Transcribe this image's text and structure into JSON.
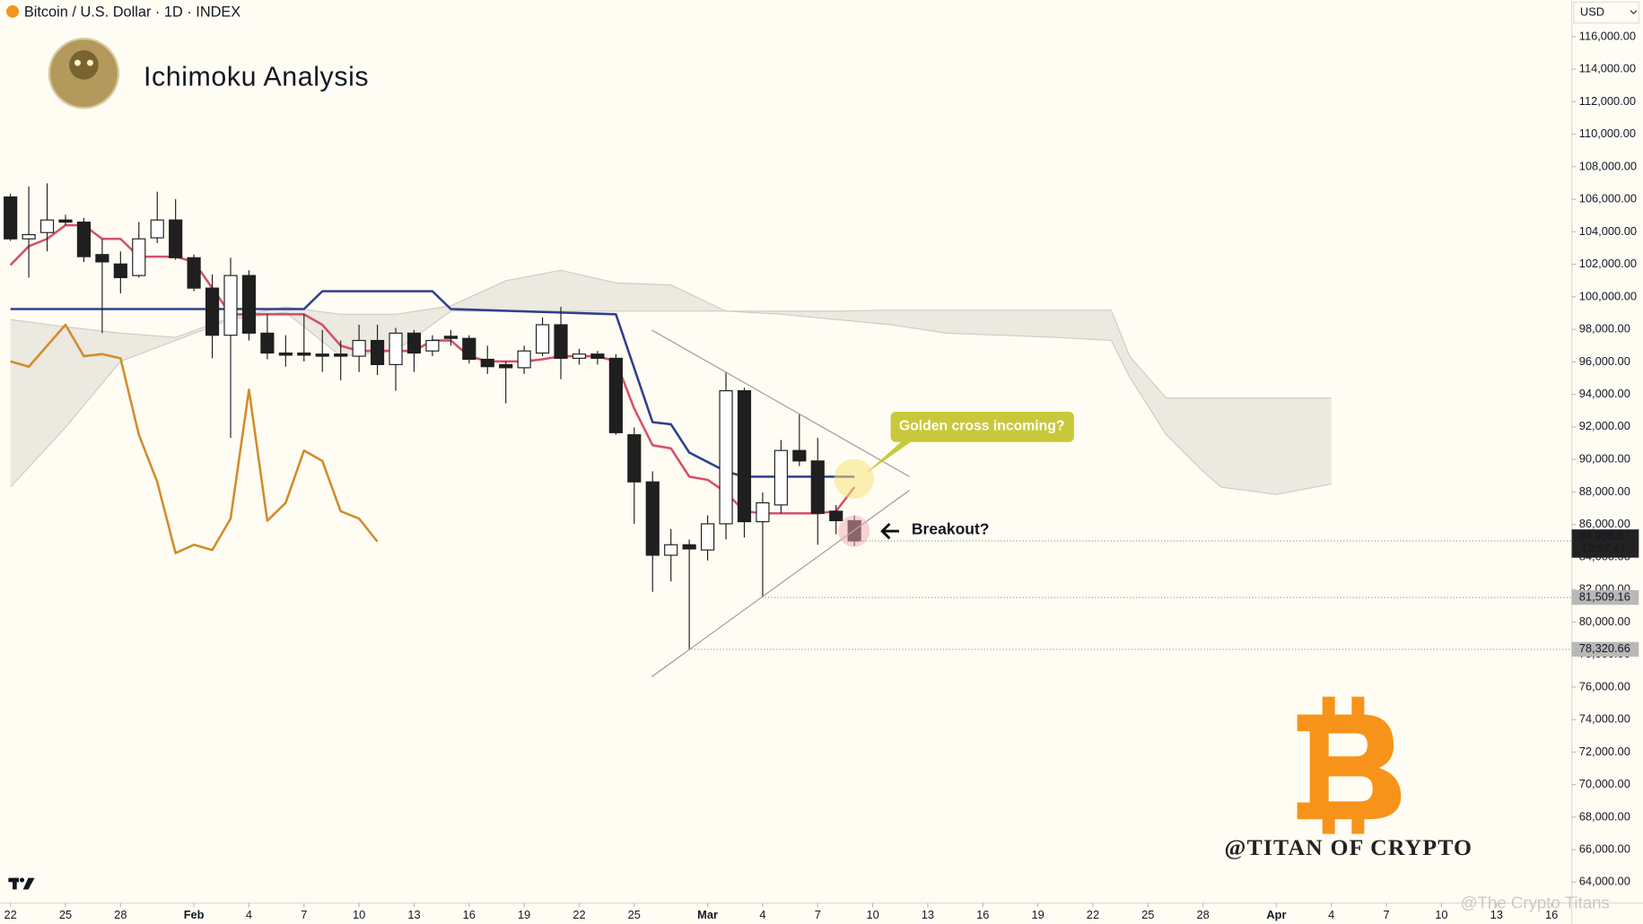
{
  "header": {
    "symbol": "Bitcoin / U.S. Dollar · 1D · INDEX",
    "title": "Ichimoku Analysis",
    "currency": "USD"
  },
  "chart_data": {
    "type": "candlestick",
    "x": [
      0,
      1,
      2,
      3,
      4,
      5,
      6,
      7,
      8,
      9,
      10,
      11,
      12,
      13,
      14,
      15,
      16,
      17,
      18,
      19,
      20,
      21,
      22,
      23,
      24,
      25,
      26,
      27,
      28,
      29,
      30,
      31,
      32,
      33,
      34,
      35,
      36,
      37,
      38,
      39,
      40,
      41,
      42,
      43,
      44,
      45,
      46
    ],
    "open": [
      106142,
      103565,
      103952,
      104725,
      104596,
      102599,
      102019,
      101310,
      103629,
      104725,
      102405,
      100537,
      97637,
      101310,
      97766,
      96542,
      96542,
      96478,
      96478,
      96349,
      97315,
      95833,
      97766,
      96671,
      97573,
      97444,
      96156,
      95833,
      95640,
      96542,
      98282,
      96220,
      96478,
      96220,
      91517,
      88617,
      84107,
      84751,
      84429,
      86040,
      94223,
      86169,
      87200,
      90550,
      89906,
      86813,
      86233
    ],
    "high": [
      106335,
      106787,
      106980,
      105047,
      104854,
      103565,
      102792,
      104596,
      106464,
      106013,
      102599,
      101374,
      102405,
      101632,
      98926,
      97637,
      98926,
      97960,
      97315,
      98282,
      98282,
      98088,
      97960,
      97637,
      97960,
      97637,
      96993,
      96027,
      96993,
      98733,
      99377,
      96800,
      96671,
      96478,
      91968,
      89262,
      85718,
      85074,
      86555,
      95382,
      94416,
      87973,
      91194,
      92805,
      91323,
      87200,
      86555
    ],
    "low": [
      103436,
      101181,
      102792,
      104403,
      102148,
      97766,
      100215,
      101181,
      103307,
      102276,
      100344,
      96220,
      91323,
      97315,
      96156,
      95705,
      96027,
      95382,
      94867,
      95382,
      95189,
      94223,
      95382,
      96349,
      96993,
      95898,
      95254,
      93449,
      95254,
      96349,
      94931,
      95833,
      95833,
      91517,
      86040,
      81852,
      82496,
      78320.66,
      83785,
      85074,
      85202,
      81509.16,
      86684,
      89584,
      84751,
      85396,
      84687
    ],
    "close": [
      103565,
      103823,
      104725,
      104596,
      102470,
      102148,
      101181,
      103565,
      104725,
      102405,
      100537,
      97637,
      101310,
      97766,
      96542,
      96413,
      96413,
      96349,
      96349,
      97315,
      95833,
      97766,
      96542,
      97315,
      97444,
      96156,
      95705,
      95640,
      96671,
      98282,
      96220,
      96478,
      96220,
      91645,
      88617,
      84107,
      84751,
      84494,
      86040,
      94223,
      86169,
      87329,
      90550,
      89906,
      86684,
      86233,
      84986.67
    ],
    "candle_colors": {
      "up": "#ffffff",
      "down": "#1f1f1f",
      "wick": "#1f1f1f"
    },
    "lines": [
      {
        "color": "#d4516c",
        "x": [
          0,
          1,
          2,
          3,
          4,
          5,
          6,
          7,
          8,
          9,
          10,
          11,
          12,
          13,
          14,
          15,
          16,
          17,
          18,
          19,
          20,
          21,
          22,
          23,
          24,
          25,
          26,
          27,
          28,
          29,
          30,
          31,
          32,
          33,
          34,
          35,
          36,
          37,
          38,
          39,
          40,
          41,
          42,
          43,
          44,
          45,
          46
        ],
        "values": [
          101954,
          103114,
          103565,
          104403,
          104403,
          103565,
          103565,
          102470,
          102470,
          102470,
          102148,
          100537,
          98926,
          98926,
          98926,
          98926,
          98926,
          98282,
          96993,
          96671,
          96671,
          96671,
          96671,
          97315,
          97315,
          96349,
          96027,
          96027,
          96027,
          96156,
          96349,
          96349,
          96349,
          96027,
          93127,
          90872,
          90679,
          88939,
          88746,
          87973,
          86813,
          86684,
          86684,
          86684,
          86684,
          86813,
          88295
        ]
      },
      {
        "color": "#2e3f8f",
        "x": [
          0,
          16,
          17,
          23,
          24,
          33,
          35,
          36,
          37,
          39,
          40,
          46
        ],
        "values": [
          99248,
          99248,
          100344,
          100344,
          99248,
          98926,
          92290,
          92161,
          90421,
          89262,
          88939,
          88939
        ]
      },
      {
        "color": "#d38b2c",
        "x": [
          0,
          1,
          2,
          3,
          4,
          5,
          6,
          7,
          8,
          9,
          10,
          11,
          12,
          13,
          14,
          15,
          16,
          17,
          18,
          19,
          20
        ],
        "values": [
          96027,
          95705,
          96993,
          98282,
          96349,
          96478,
          96220,
          91517,
          88617,
          84236,
          84751,
          84429,
          86362,
          94287,
          86233,
          87329,
          90550,
          89906,
          86813,
          86362,
          84945
        ]
      }
    ],
    "cloud": {
      "color": "#e4e1da",
      "edge": "#cfccc4",
      "x": [
        0,
        3,
        6,
        9,
        12,
        15,
        18,
        21,
        24,
        27,
        30,
        33,
        36,
        39,
        42,
        45,
        48,
        51,
        54,
        57,
        60,
        61,
        63,
        65,
        66,
        69,
        72
      ],
      "span_a": [
        88295,
        91968,
        96027,
        97315,
        98604,
        99055,
        96349,
        96671,
        99119,
        99119,
        99119,
        99119,
        99119,
        99119,
        98926,
        98604,
        98282,
        97766,
        97637,
        97509,
        97315,
        95060,
        91517,
        89262,
        88295,
        87844,
        88488
      ],
      "span_b": [
        98604,
        98153,
        97766,
        97509,
        98733,
        99377,
        98926,
        98926,
        99441,
        100988,
        101632,
        100859,
        100730,
        99119,
        99119,
        99119,
        99184,
        99184,
        99184,
        99184,
        99184,
        96349,
        93772,
        93772,
        93772,
        93772,
        93772
      ]
    },
    "xlim": [
      -0.57,
      85.1
    ],
    "ylim": [
      62716,
      118255
    ],
    "yticks": [
      {
        "value": 64000,
        "label": "64,000.00"
      },
      {
        "value": 66000,
        "label": "66,000.00"
      },
      {
        "value": 68000,
        "label": "68,000.00"
      },
      {
        "value": 70000,
        "label": "70,000.00"
      },
      {
        "value": 72000,
        "label": "72,000.00"
      },
      {
        "value": 74000,
        "label": "74,000.00"
      },
      {
        "value": 76000,
        "label": "76,000.00"
      },
      {
        "value": 78000,
        "label": "78,000.00"
      },
      {
        "value": 80000,
        "label": "80,000.00"
      },
      {
        "value": 82000,
        "label": "82,000.00"
      },
      {
        "value": 84000,
        "label": "84,000.00"
      },
      {
        "value": 86000,
        "label": "86,000.00"
      },
      {
        "value": 88000,
        "label": "88,000.00"
      },
      {
        "value": 90000,
        "label": "90,000.00"
      },
      {
        "value": 92000,
        "label": "92,000.00"
      },
      {
        "value": 94000,
        "label": "94,000.00"
      },
      {
        "value": 96000,
        "label": "96,000.00"
      },
      {
        "value": 98000,
        "label": "98,000.00"
      },
      {
        "value": 100000,
        "label": "100,000.00"
      },
      {
        "value": 102000,
        "label": "102,000.00"
      },
      {
        "value": 104000,
        "label": "104,000.00"
      },
      {
        "value": 106000,
        "label": "106,000.00"
      },
      {
        "value": 108000,
        "label": "108,000.00"
      },
      {
        "value": 110000,
        "label": "110,000.00"
      },
      {
        "value": 112000,
        "label": "112,000.00"
      },
      {
        "value": 114000,
        "label": "114,000.00"
      },
      {
        "value": 116000,
        "label": "116,000.00"
      }
    ],
    "xticks": [
      {
        "value": 0,
        "label": "22"
      },
      {
        "value": 3,
        "label": "25"
      },
      {
        "value": 6,
        "label": "28"
      },
      {
        "value": 10,
        "label": "Feb"
      },
      {
        "value": 13,
        "label": "4"
      },
      {
        "value": 16,
        "label": "7"
      },
      {
        "value": 19,
        "label": "10"
      },
      {
        "value": 22,
        "label": "13"
      },
      {
        "value": 25,
        "label": "16"
      },
      {
        "value": 28,
        "label": "19"
      },
      {
        "value": 31,
        "label": "22"
      },
      {
        "value": 34,
        "label": "25"
      },
      {
        "value": 38,
        "label": "Mar"
      },
      {
        "value": 41,
        "label": "4"
      },
      {
        "value": 44,
        "label": "7"
      },
      {
        "value": 47,
        "label": "10"
      },
      {
        "value": 50,
        "label": "13"
      },
      {
        "value": 53,
        "label": "16"
      },
      {
        "value": 56,
        "label": "19"
      },
      {
        "value": 59,
        "label": "22"
      },
      {
        "value": 62,
        "label": "25"
      },
      {
        "value": 65,
        "label": "28"
      },
      {
        "value": 69,
        "label": "Apr"
      },
      {
        "value": 72,
        "label": "4"
      },
      {
        "value": 75,
        "label": "7"
      },
      {
        "value": 78,
        "label": "10"
      },
      {
        "value": 81,
        "label": "13"
      },
      {
        "value": 84,
        "label": "16"
      }
    ],
    "price_labels": [
      {
        "value": 84986.67,
        "label": "84,986.67",
        "countdown": "12:57:41"
      },
      {
        "value": 81509.16,
        "label": "81,509.16"
      },
      {
        "value": 78320.66,
        "label": "78,320.66"
      }
    ],
    "annotations": [
      "Golden cross incoming?",
      "Breakout?"
    ]
  },
  "watermark": "@TITAN OF CRYPTO",
  "source": "@The Crypto Titans"
}
